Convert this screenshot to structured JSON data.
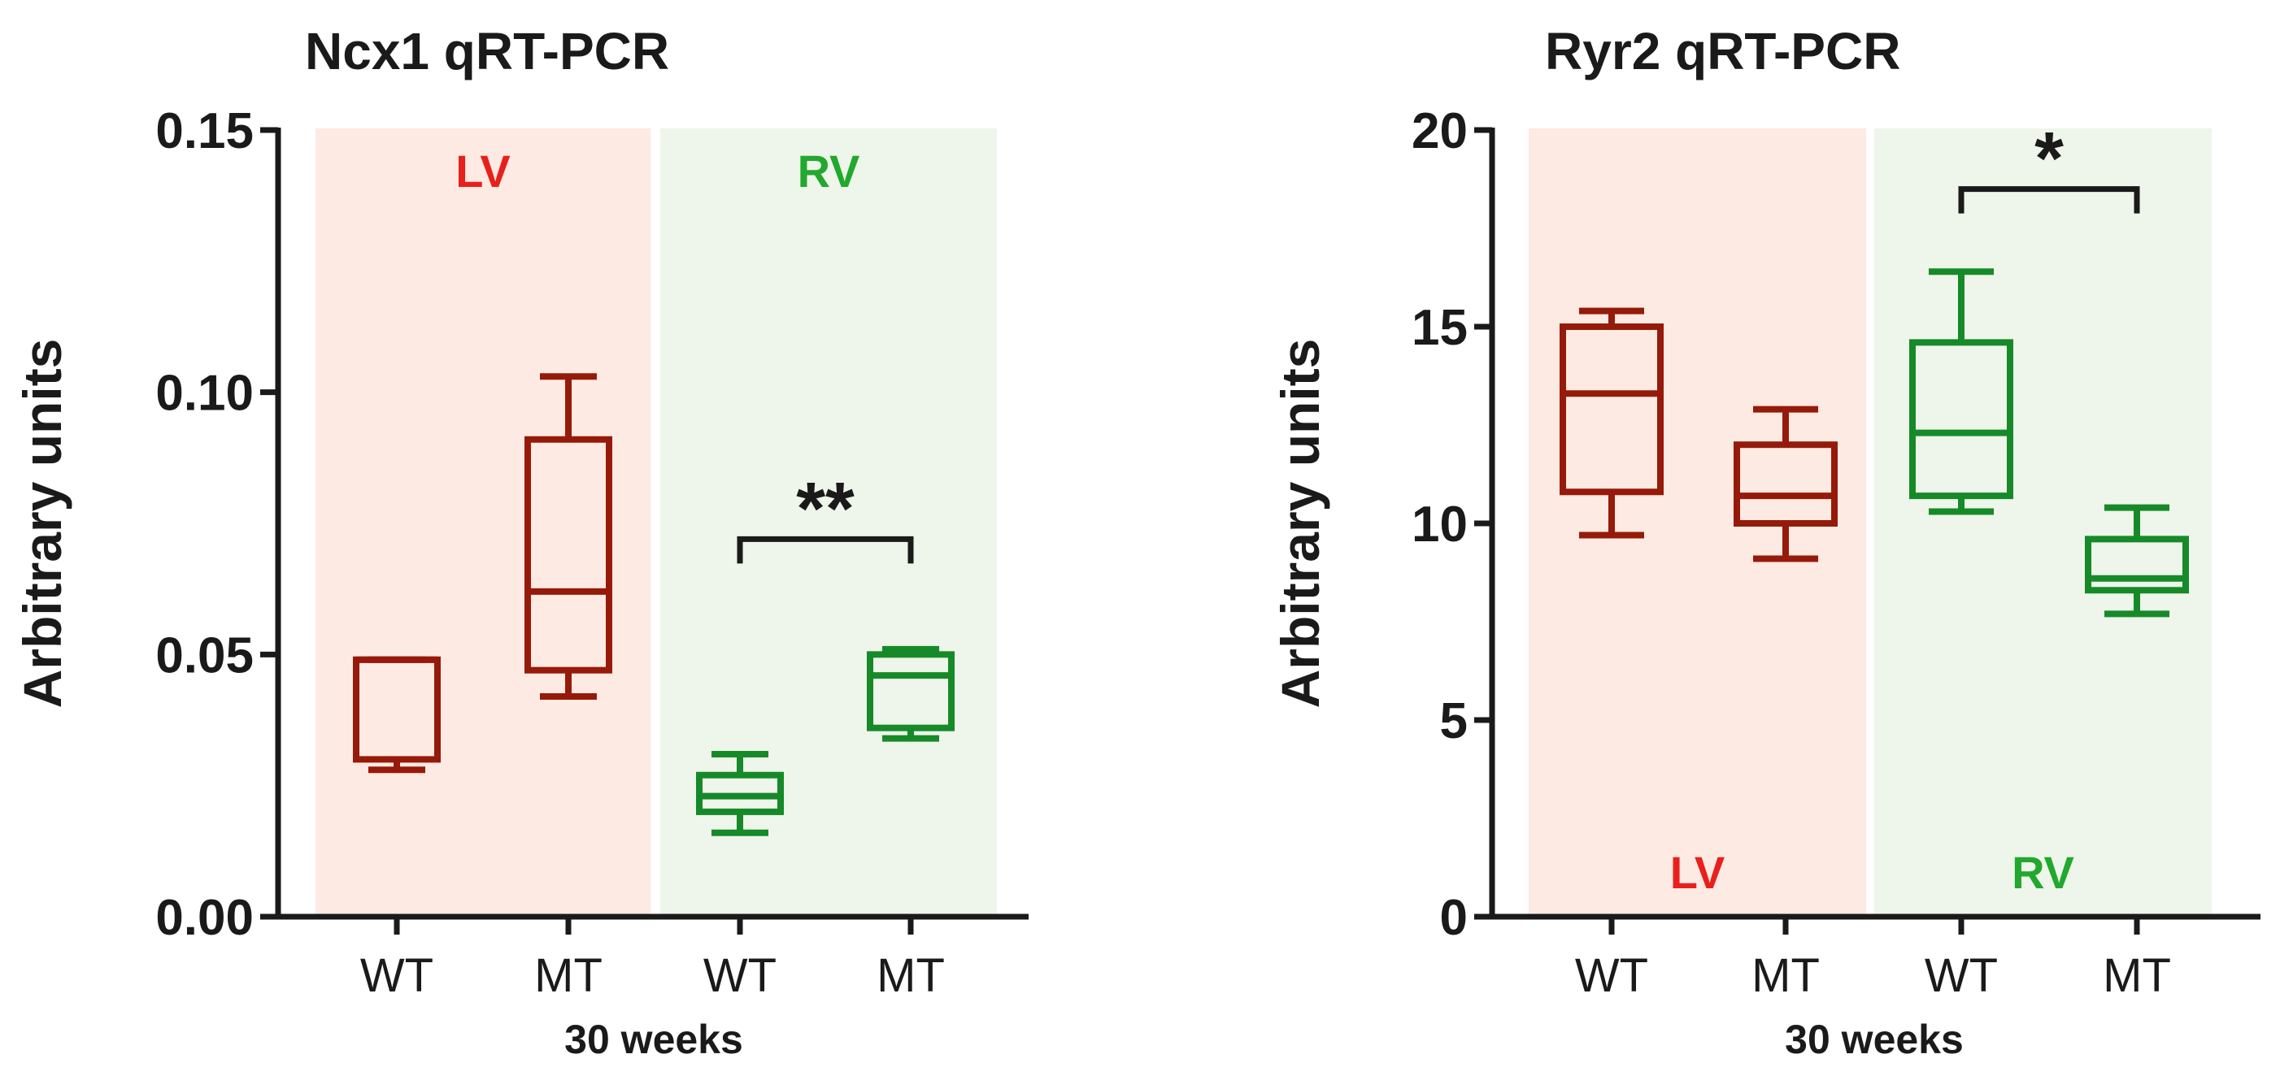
{
  "colors": {
    "lv_box": "#961a0a",
    "rv_box": "#168a28",
    "lv_text": "#e8201c",
    "rv_text": "#22a82e",
    "lv_bg": "#fdeae3",
    "rv_bg": "#eef5ea",
    "axis": "#1a1a1a"
  },
  "chart_data": [
    {
      "type": "box",
      "title": "Ncx1 qRT-PCR",
      "ylabel": "Arbitrary units",
      "xlabel": "30 weeks",
      "ylim": [
        0,
        0.15
      ],
      "yticks": [
        0.0,
        0.05,
        0.1,
        0.15
      ],
      "ytick_labels": [
        "0.00",
        "0.05",
        "0.10",
        "0.15"
      ],
      "categories": [
        "WT",
        "MT",
        "WT",
        "MT"
      ],
      "regions": [
        {
          "label": "LV",
          "groups": [
            0,
            1
          ],
          "label_position": "top"
        },
        {
          "label": "RV",
          "groups": [
            2,
            3
          ],
          "label_position": "top"
        }
      ],
      "boxes": [
        {
          "group": "LV",
          "name": "WT",
          "min": 0.028,
          "q1": 0.03,
          "median": 0.049,
          "q3": 0.049,
          "max": 0.049
        },
        {
          "group": "LV",
          "name": "MT",
          "min": 0.042,
          "q1": 0.047,
          "median": 0.062,
          "q3": 0.091,
          "max": 0.103
        },
        {
          "group": "RV",
          "name": "WT",
          "min": 0.016,
          "q1": 0.02,
          "median": 0.023,
          "q3": 0.027,
          "max": 0.031
        },
        {
          "group": "RV",
          "name": "MT",
          "min": 0.034,
          "q1": 0.036,
          "median": 0.046,
          "q3": 0.05,
          "max": 0.051
        }
      ],
      "significance": [
        {
          "between": [
            2,
            3
          ],
          "label": "**",
          "level": 0.072
        }
      ]
    },
    {
      "type": "box",
      "title": "Ryr2 qRT-PCR",
      "ylabel": "Arbitrary units",
      "xlabel": "30 weeks",
      "ylim": [
        0,
        20
      ],
      "yticks": [
        0,
        5,
        10,
        15,
        20
      ],
      "ytick_labels": [
        "0",
        "5",
        "10",
        "15",
        "20"
      ],
      "categories": [
        "WT",
        "MT",
        "WT",
        "MT"
      ],
      "regions": [
        {
          "label": "LV",
          "groups": [
            0,
            1
          ],
          "label_position": "bottom"
        },
        {
          "label": "RV",
          "groups": [
            2,
            3
          ],
          "label_position": "bottom"
        }
      ],
      "boxes": [
        {
          "group": "LV",
          "name": "WT",
          "min": 9.7,
          "q1": 10.8,
          "median": 13.3,
          "q3": 15.0,
          "max": 15.4
        },
        {
          "group": "LV",
          "name": "MT",
          "min": 9.1,
          "q1": 10.0,
          "median": 10.7,
          "q3": 12.0,
          "max": 12.9
        },
        {
          "group": "RV",
          "name": "WT",
          "min": 10.3,
          "q1": 10.7,
          "median": 12.3,
          "q3": 14.6,
          "max": 16.4
        },
        {
          "group": "RV",
          "name": "MT",
          "min": 7.7,
          "q1": 8.3,
          "median": 8.6,
          "q3": 9.6,
          "max": 10.4
        }
      ],
      "significance": [
        {
          "between": [
            2,
            3
          ],
          "label": "*",
          "level": 18.5
        }
      ]
    }
  ]
}
